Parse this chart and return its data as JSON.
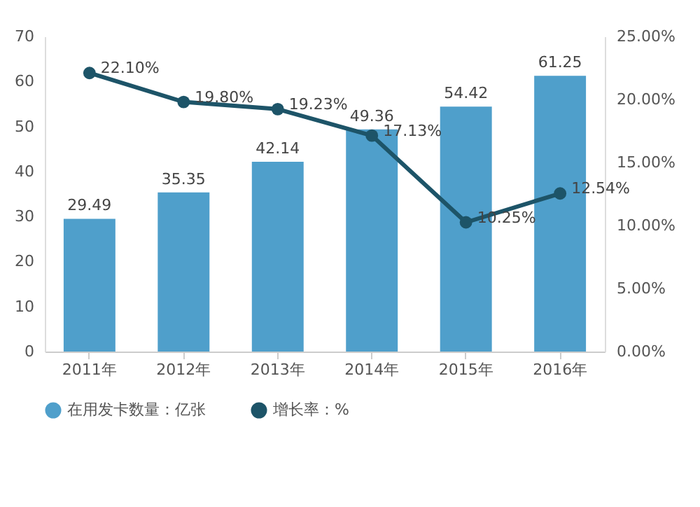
{
  "chart_data": {
    "type": "bar",
    "categories": [
      "2011年",
      "2012年",
      "2013年",
      "2014年",
      "2015年",
      "2016年"
    ],
    "series": [
      {
        "name": "在用发卡数量：亿张",
        "color": "#4f9fcb",
        "values": [
          29.49,
          35.35,
          42.14,
          49.36,
          54.42,
          61.25
        ],
        "value_labels": [
          "29.49",
          "35.35",
          "42.14",
          "49.36",
          "54.42",
          "61.25"
        ]
      },
      {
        "name": "增长率：%",
        "type": "line",
        "axis": "y2",
        "color": "#1d5468",
        "values": [
          22.1,
          19.8,
          19.23,
          17.13,
          10.25,
          12.54
        ],
        "value_labels": [
          "22.10%",
          "19.80%",
          "19.23%",
          "17.13%",
          "10.25%",
          "12.54%"
        ]
      }
    ],
    "ylim": [
      0,
      70
    ],
    "yticks": [
      0,
      10,
      20,
      30,
      40,
      50,
      60,
      70
    ],
    "y2lim": [
      0,
      25
    ],
    "y2ticks": [
      {
        "value": 0,
        "label": "0.00%"
      },
      {
        "value": 5,
        "label": "5.00%"
      },
      {
        "value": 10,
        "label": "10.00%"
      },
      {
        "value": 15,
        "label": "15.00%"
      },
      {
        "value": 20,
        "label": "20.00%"
      },
      {
        "value": 25,
        "label": "25.00%"
      }
    ],
    "marker": "circle",
    "line_style": "solid",
    "grid": false,
    "legend": "bottom"
  }
}
